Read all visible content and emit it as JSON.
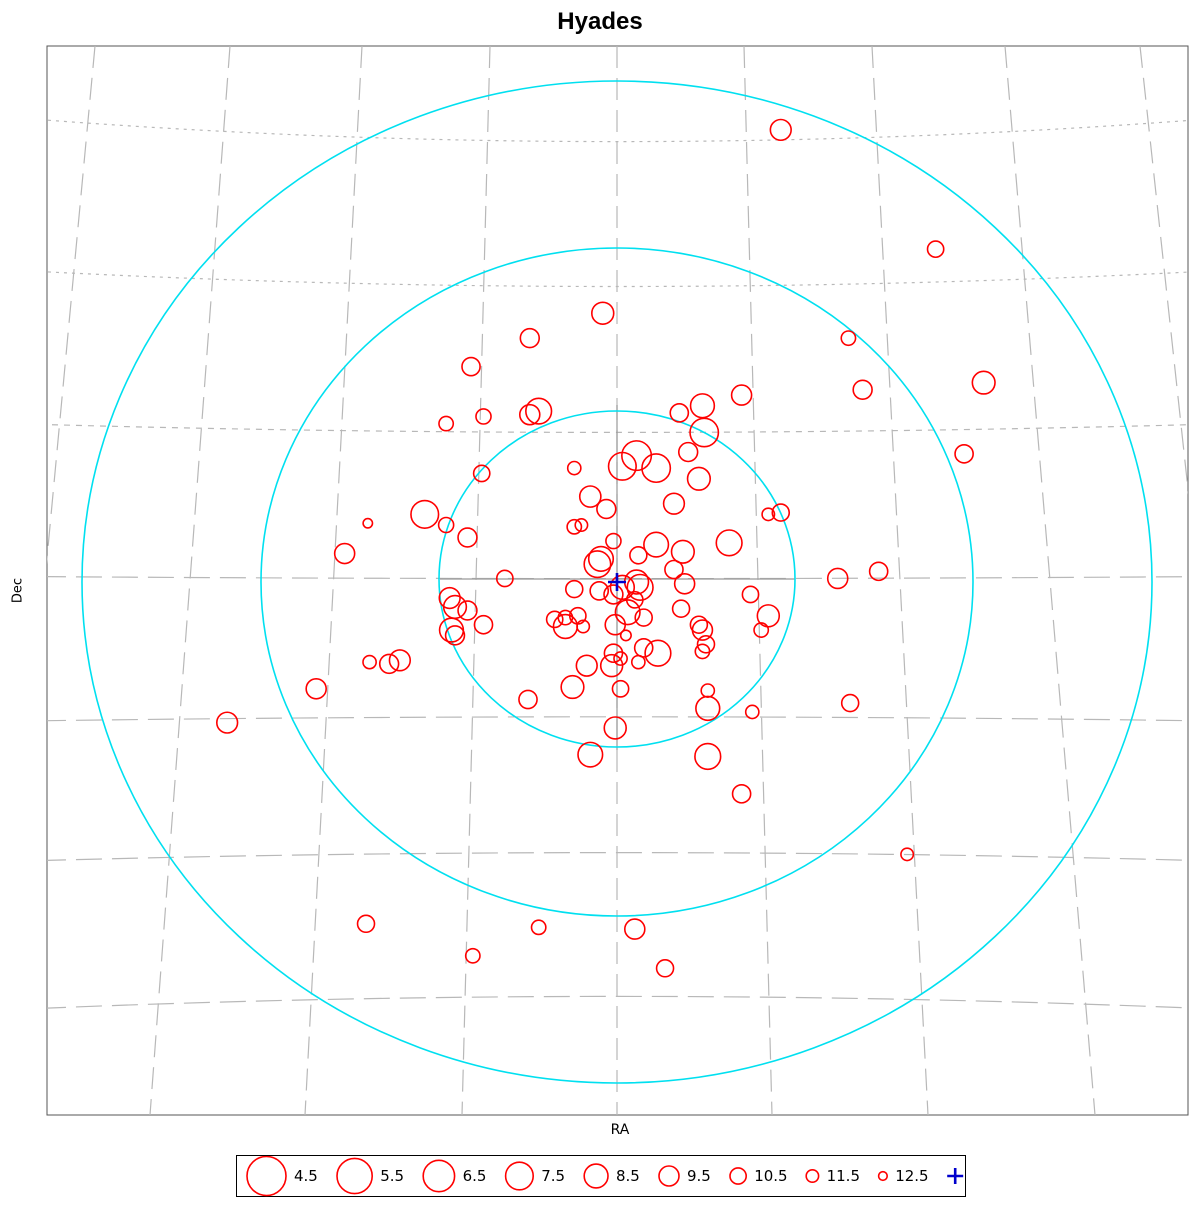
{
  "chart_data": {
    "type": "scatter",
    "title": "Hyades",
    "xlabel": "RA",
    "ylabel": "Dec",
    "projection": "gnomonic sky chart centered on cluster median",
    "grid": "on (RA/Dec graticule, grey dashed)",
    "ring_color": "#00e0f0",
    "point_color": "#ff0000",
    "median_color": "#0000cc",
    "rings": 3,
    "size_encoding": "apparent magnitude (brighter = larger circle)",
    "legend_position": "bottom-center",
    "legend": [
      {
        "label": "4.5",
        "mag": 4.5
      },
      {
        "label": "5.5",
        "mag": 5.5
      },
      {
        "label": "6.5",
        "mag": 6.5
      },
      {
        "label": "7.5",
        "mag": 7.5
      },
      {
        "label": "8.5",
        "mag": 8.5
      },
      {
        "label": "9.5",
        "mag": 9.5
      },
      {
        "label": "10.5",
        "mag": 10.5
      },
      {
        "label": "11.5",
        "mag": 11.5
      },
      {
        "label": "12.5",
        "mag": 12.5
      },
      {
        "label": "Median",
        "marker": "plus"
      }
    ],
    "median": {
      "x": 0,
      "y": 0
    },
    "stars": [
      {
        "x": 0.92,
        "y": 2.54,
        "mag": 9.3
      },
      {
        "x": 1.79,
        "y": 1.87,
        "mag": 10.5
      },
      {
        "x": -0.08,
        "y": 1.51,
        "mag": 9.0
      },
      {
        "x": -0.49,
        "y": 1.37,
        "mag": 9.8
      },
      {
        "x": -0.82,
        "y": 1.21,
        "mag": 10.0
      },
      {
        "x": 1.3,
        "y": 1.37,
        "mag": 11.0
      },
      {
        "x": 1.38,
        "y": 1.08,
        "mag": 9.8
      },
      {
        "x": 2.06,
        "y": 1.12,
        "mag": 8.8
      },
      {
        "x": 0.7,
        "y": 1.05,
        "mag": 9.5
      },
      {
        "x": 0.48,
        "y": 0.99,
        "mag": 8.5
      },
      {
        "x": -0.49,
        "y": 0.94,
        "mag": 9.5
      },
      {
        "x": -0.44,
        "y": 0.96,
        "mag": 8.0
      },
      {
        "x": -0.75,
        "y": 0.93,
        "mag": 10.8
      },
      {
        "x": -0.96,
        "y": 0.89,
        "mag": 11.0
      },
      {
        "x": 0.35,
        "y": 0.95,
        "mag": 10.0
      },
      {
        "x": 0.49,
        "y": 0.84,
        "mag": 7.3
      },
      {
        "x": 1.95,
        "y": 0.72,
        "mag": 10.0
      },
      {
        "x": 0.4,
        "y": 0.73,
        "mag": 9.8
      },
      {
        "x": 0.11,
        "y": 0.71,
        "mag": 7.0
      },
      {
        "x": 0.03,
        "y": 0.65,
        "mag": 7.5
      },
      {
        "x": 0.22,
        "y": 0.64,
        "mag": 7.3
      },
      {
        "x": -0.24,
        "y": 0.64,
        "mag": 11.3
      },
      {
        "x": 0.46,
        "y": 0.58,
        "mag": 8.8
      },
      {
        "x": -0.76,
        "y": 0.61,
        "mag": 10.5
      },
      {
        "x": -0.15,
        "y": 0.48,
        "mag": 9.2
      },
      {
        "x": -0.06,
        "y": 0.41,
        "mag": 9.8
      },
      {
        "x": 0.32,
        "y": 0.44,
        "mag": 9.3
      },
      {
        "x": 0.85,
        "y": 0.38,
        "mag": 11.5
      },
      {
        "x": 0.92,
        "y": 0.39,
        "mag": 10.3
      },
      {
        "x": -1.08,
        "y": 0.38,
        "mag": 7.5
      },
      {
        "x": -1.4,
        "y": 0.33,
        "mag": 12.3
      },
      {
        "x": -0.96,
        "y": 0.32,
        "mag": 10.8
      },
      {
        "x": -0.24,
        "y": 0.31,
        "mag": 11.0
      },
      {
        "x": -0.2,
        "y": 0.32,
        "mag": 11.5
      },
      {
        "x": -0.84,
        "y": 0.25,
        "mag": 9.8
      },
      {
        "x": -0.02,
        "y": 0.23,
        "mag": 10.8
      },
      {
        "x": 0.22,
        "y": 0.21,
        "mag": 8.3
      },
      {
        "x": 0.37,
        "y": 0.17,
        "mag": 8.8
      },
      {
        "x": 0.63,
        "y": 0.22,
        "mag": 8.0
      },
      {
        "x": -1.53,
        "y": 0.16,
        "mag": 9.5
      },
      {
        "x": -0.09,
        "y": 0.13,
        "mag": 8.3
      },
      {
        "x": 0.12,
        "y": 0.15,
        "mag": 10.3
      },
      {
        "x": -0.11,
        "y": 0.1,
        "mag": 7.8
      },
      {
        "x": 0.32,
        "y": 0.07,
        "mag": 10.0
      },
      {
        "x": 1.47,
        "y": 0.06,
        "mag": 10.0
      },
      {
        "x": -0.63,
        "y": 0.02,
        "mag": 10.5
      },
      {
        "x": 0.11,
        "y": 0.0,
        "mag": 8.5
      },
      {
        "x": 0.13,
        "y": -0.03,
        "mag": 8.0
      },
      {
        "x": 0.03,
        "y": -0.03,
        "mag": 8.5
      },
      {
        "x": 1.24,
        "y": 0.02,
        "mag": 9.5
      },
      {
        "x": -0.24,
        "y": -0.04,
        "mag": 10.3
      },
      {
        "x": -0.1,
        "y": -0.05,
        "mag": 10.0
      },
      {
        "x": 0.38,
        "y": -0.01,
        "mag": 9.5
      },
      {
        "x": -0.02,
        "y": -0.07,
        "mag": 9.8
      },
      {
        "x": 0.1,
        "y": -0.1,
        "mag": 10.5
      },
      {
        "x": 0.75,
        "y": -0.07,
        "mag": 10.5
      },
      {
        "x": -0.94,
        "y": -0.09,
        "mag": 9.3
      },
      {
        "x": -0.91,
        "y": -0.14,
        "mag": 8.8
      },
      {
        "x": -0.84,
        "y": -0.16,
        "mag": 9.8
      },
      {
        "x": 0.06,
        "y": -0.17,
        "mag": 8.3
      },
      {
        "x": 0.36,
        "y": -0.15,
        "mag": 10.3
      },
      {
        "x": 0.85,
        "y": -0.19,
        "mag": 9.0
      },
      {
        "x": 0.15,
        "y": -0.2,
        "mag": 10.3
      },
      {
        "x": -0.35,
        "y": -0.21,
        "mag": 10.5
      },
      {
        "x": -0.29,
        "y": -0.2,
        "mag": 11.0
      },
      {
        "x": -0.22,
        "y": -0.19,
        "mag": 10.5
      },
      {
        "x": -0.19,
        "y": -0.25,
        "mag": 11.5
      },
      {
        "x": -0.29,
        "y": -0.25,
        "mag": 8.5
      },
      {
        "x": -0.01,
        "y": -0.24,
        "mag": 9.5
      },
      {
        "x": -0.75,
        "y": -0.24,
        "mag": 10.0
      },
      {
        "x": -0.93,
        "y": -0.27,
        "mag": 8.5
      },
      {
        "x": -0.91,
        "y": -0.3,
        "mag": 9.8
      },
      {
        "x": 0.46,
        "y": -0.24,
        "mag": 10.3
      },
      {
        "x": 0.48,
        "y": -0.27,
        "mag": 9.5
      },
      {
        "x": 0.81,
        "y": -0.27,
        "mag": 11.0
      },
      {
        "x": 0.05,
        "y": -0.3,
        "mag": 12.0
      },
      {
        "x": 0.5,
        "y": -0.35,
        "mag": 10.3
      },
      {
        "x": 0.15,
        "y": -0.37,
        "mag": 10.0
      },
      {
        "x": 0.23,
        "y": -0.4,
        "mag": 8.0
      },
      {
        "x": 0.48,
        "y": -0.39,
        "mag": 11.0
      },
      {
        "x": -0.02,
        "y": -0.4,
        "mag": 10.0
      },
      {
        "x": 0.02,
        "y": -0.43,
        "mag": 11.3
      },
      {
        "x": -0.17,
        "y": -0.47,
        "mag": 9.3
      },
      {
        "x": -0.03,
        "y": -0.47,
        "mag": 9.0
      },
      {
        "x": -1.28,
        "y": -0.46,
        "mag": 9.8
      },
      {
        "x": -1.39,
        "y": -0.45,
        "mag": 11.3
      },
      {
        "x": -1.22,
        "y": -0.44,
        "mag": 9.3
      },
      {
        "x": 0.12,
        "y": -0.45,
        "mag": 11.3
      },
      {
        "x": -1.69,
        "y": -0.6,
        "mag": 9.5
      },
      {
        "x": -0.25,
        "y": -0.59,
        "mag": 8.8
      },
      {
        "x": 0.02,
        "y": -0.6,
        "mag": 10.5
      },
      {
        "x": 0.51,
        "y": -0.61,
        "mag": 11.3
      },
      {
        "x": -0.5,
        "y": -0.66,
        "mag": 10.0
      },
      {
        "x": 1.31,
        "y": -0.68,
        "mag": 10.3
      },
      {
        "x": 0.51,
        "y": -0.71,
        "mag": 8.5
      },
      {
        "x": 0.76,
        "y": -0.73,
        "mag": 11.3
      },
      {
        "x": -2.19,
        "y": -0.79,
        "mag": 9.3
      },
      {
        "x": -0.01,
        "y": -0.82,
        "mag": 9.0
      },
      {
        "x": -0.15,
        "y": -0.97,
        "mag": 8.3
      },
      {
        "x": 0.51,
        "y": -0.98,
        "mag": 8.0
      },
      {
        "x": 0.7,
        "y": -1.19,
        "mag": 10.0
      },
      {
        "x": 1.63,
        "y": -1.53,
        "mag": 11.5
      },
      {
        "x": -1.41,
        "y": -1.92,
        "mag": 10.3
      },
      {
        "x": -0.44,
        "y": -1.94,
        "mag": 11.0
      },
      {
        "x": 0.1,
        "y": -1.95,
        "mag": 9.5
      },
      {
        "x": -0.81,
        "y": -2.1,
        "mag": 11.0
      },
      {
        "x": 0.27,
        "y": -2.17,
        "mag": 10.3
      }
    ]
  }
}
